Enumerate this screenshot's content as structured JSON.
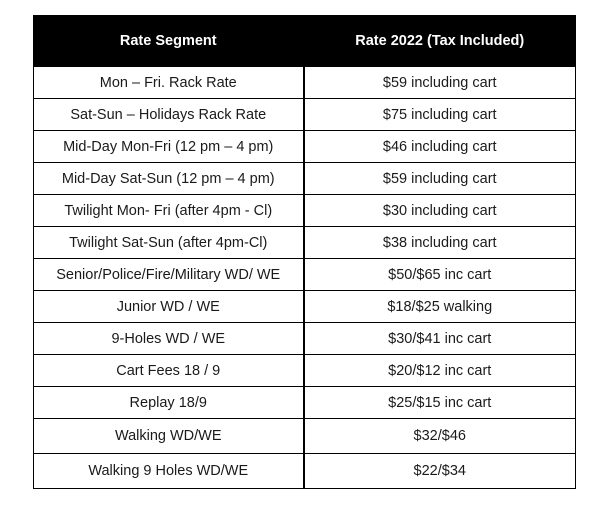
{
  "header": {
    "col1": "Rate Segment",
    "col2": "Rate 2022 (Tax Included)"
  },
  "rows": [
    {
      "segment": "Mon – Fri. Rack Rate",
      "rate": "$59 including cart"
    },
    {
      "segment": "Sat-Sun – Holidays Rack Rate",
      "rate": "$75 including cart"
    },
    {
      "segment": "Mid-Day Mon-Fri (12 pm – 4 pm)",
      "rate": "$46 including cart"
    },
    {
      "segment": "Mid-Day Sat-Sun (12 pm – 4 pm)",
      "rate": "$59 including cart"
    },
    {
      "segment": "Twilight Mon- Fri (after 4pm - Cl)",
      "rate": "$30 including cart"
    },
    {
      "segment": "Twilight Sat-Sun (after 4pm-Cl)",
      "rate": "$38 including cart"
    },
    {
      "segment": "Senior/Police/Fire/Military WD/ WE",
      "rate": "$50/$65 inc cart"
    },
    {
      "segment": "Junior WD / WE",
      "rate": "$18/$25 walking"
    },
    {
      "segment": "9-Holes WD / WE",
      "rate": "$30/$41 inc cart"
    },
    {
      "segment": "Cart Fees  18 / 9",
      "rate": "$20/$12 inc cart"
    },
    {
      "segment": "Replay 18/9",
      "rate": "$25/$15 inc cart"
    },
    {
      "segment": "Walking WD/WE",
      "rate": "$32/$46"
    },
    {
      "segment": "Walking 9 Holes WD/WE",
      "rate": "$22/$34"
    }
  ]
}
